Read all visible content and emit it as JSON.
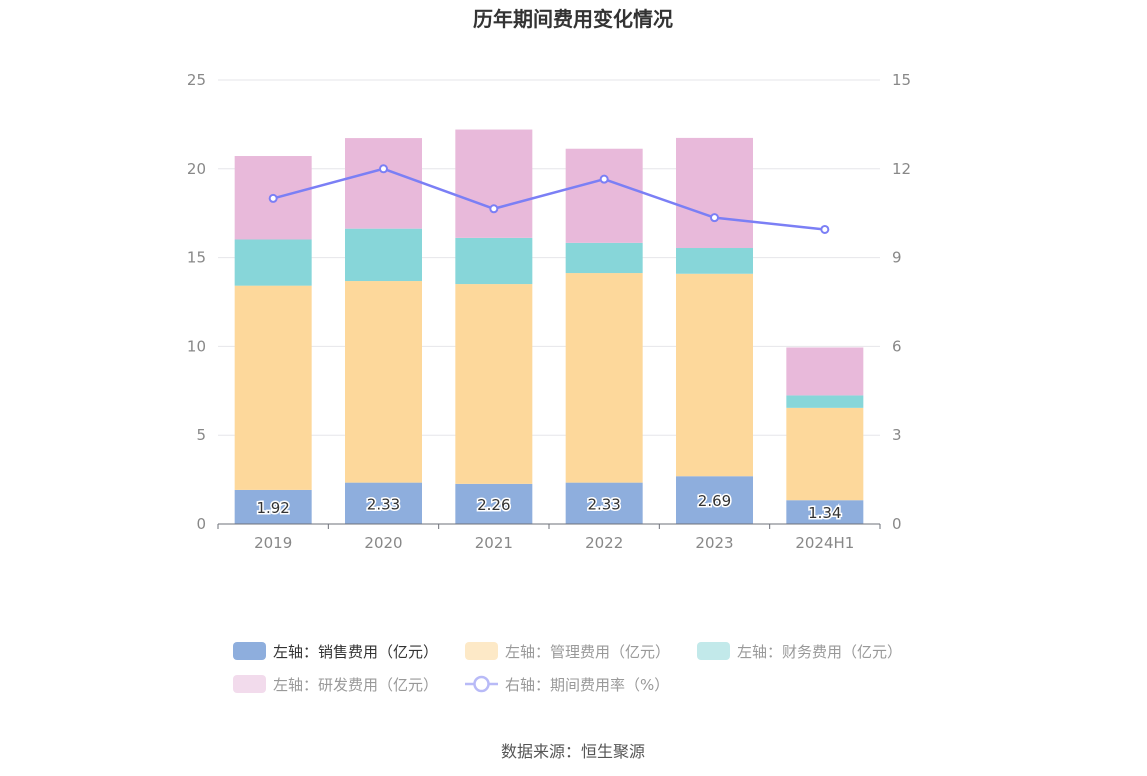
{
  "chart_data": {
    "type": "bar",
    "title": "历年期间费用变化情况",
    "categories": [
      "2019",
      "2020",
      "2021",
      "2022",
      "2023",
      "2024H1"
    ],
    "stacked": true,
    "series": [
      {
        "name": "左轴：销售费用（亿元）",
        "axis": "left",
        "color": "#8eaedd",
        "values": [
          1.92,
          2.33,
          2.26,
          2.33,
          2.69,
          1.34
        ],
        "labels": [
          "1.92",
          "2.33",
          "2.26",
          "2.33",
          "2.69",
          "1.34"
        ]
      },
      {
        "name": "左轴：管理费用（亿元）",
        "axis": "left",
        "color": "#fdd89b",
        "values": [
          11.5,
          11.35,
          11.25,
          11.8,
          11.4,
          5.2
        ]
      },
      {
        "name": "左轴：财务费用（亿元）",
        "axis": "left",
        "color": "#87d6d9",
        "values": [
          2.6,
          2.95,
          2.6,
          1.7,
          1.45,
          0.7
        ]
      },
      {
        "name": "左轴：研发费用（亿元）",
        "axis": "left",
        "color": "#e8b9da",
        "values": [
          4.7,
          5.1,
          6.1,
          5.3,
          6.2,
          2.7
        ]
      },
      {
        "name": "右轴：期间费用率（%）",
        "axis": "right",
        "type": "line",
        "color": "#7b7ff5",
        "values": [
          11.0,
          12.0,
          10.65,
          11.65,
          10.35,
          9.95
        ]
      }
    ],
    "y_left": {
      "ylim": [
        0,
        25
      ],
      "ticks": [
        "0",
        "5",
        "10",
        "15",
        "20",
        "25"
      ]
    },
    "y_right": {
      "ylim": [
        0,
        15
      ],
      "ticks": [
        "0",
        "3",
        "6",
        "9",
        "12",
        "15"
      ]
    },
    "grid": true,
    "legend_position": "bottom"
  },
  "legend": [
    {
      "label": "左轴：销售费用（亿元）",
      "color": "#8eaedd",
      "kind": "rect",
      "active": true
    },
    {
      "label": "左轴：管理费用（亿元）",
      "color": "#fde9c7",
      "kind": "rect",
      "active": false
    },
    {
      "label": "左轴：财务费用（亿元）",
      "color": "#c2e9ea",
      "kind": "rect",
      "active": false
    },
    {
      "label": "左轴：研发费用（亿元）",
      "color": "#f2dbec",
      "kind": "rect",
      "active": false
    },
    {
      "label": "右轴：期间费用率（%）",
      "color": "#b8baf7",
      "kind": "line",
      "active": false
    }
  ],
  "source": "数据来源：恒生聚源"
}
